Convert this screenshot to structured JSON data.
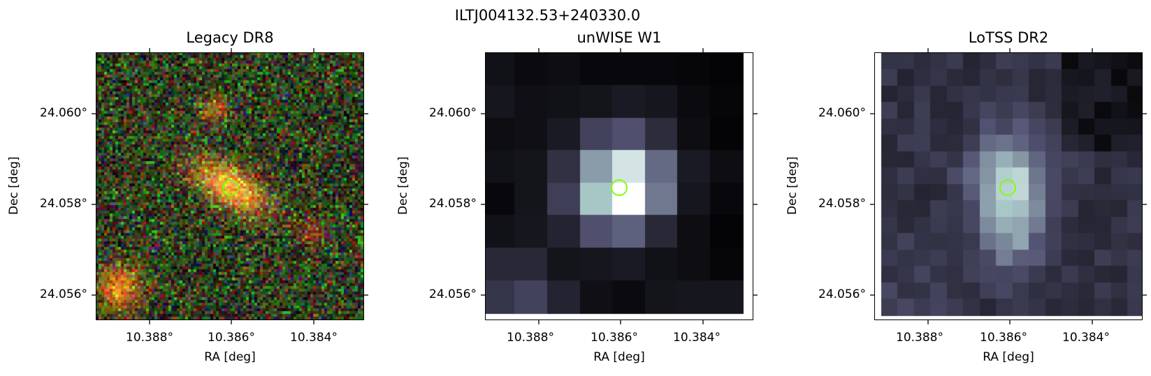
{
  "figure": {
    "title": "ILTJ004132.53+240330.0"
  },
  "panels": [
    {
      "title": "Legacy DR8",
      "xlabel": "RA [deg]",
      "ylabel": "Dec [deg]",
      "xticks": [
        "10.388°",
        "10.386°",
        "10.384°"
      ],
      "yticks": [
        "24.060°",
        "24.058°",
        "24.056°"
      ],
      "content": "optical-rgb-galaxy"
    },
    {
      "title": "unWISE W1",
      "xlabel": "RA [deg]",
      "ylabel": "Dec [deg]",
      "xticks": [
        "10.388°",
        "10.386°",
        "10.384°"
      ],
      "yticks": [
        "24.060°",
        "24.058°",
        "24.056°"
      ],
      "content": "infrared-grayscale"
    },
    {
      "title": "LoTSS DR2",
      "xlabel": "RA [deg]",
      "ylabel": "Dec [deg]",
      "xticks": [
        "10.388°",
        "10.386°",
        "10.384°"
      ],
      "yticks": [
        "24.060°",
        "24.058°",
        "24.056°"
      ],
      "content": "radio-grayscale"
    }
  ],
  "colors": {
    "marker": "#7fff00"
  }
}
